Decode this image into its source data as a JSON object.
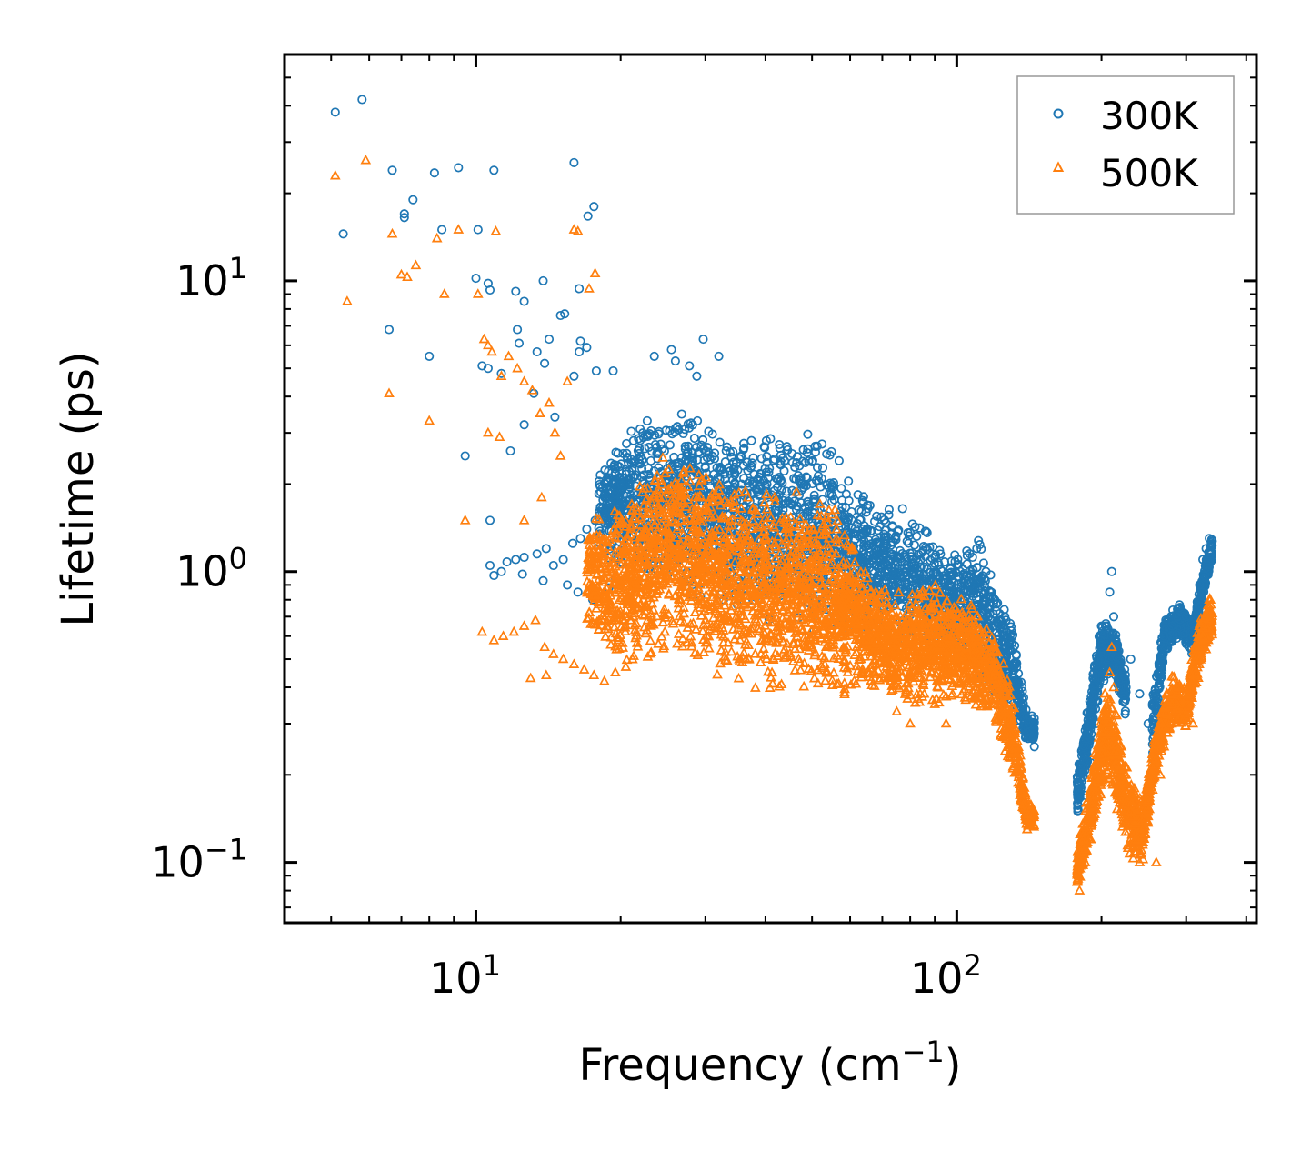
{
  "chart_data": {
    "type": "scatter",
    "title": "",
    "xlabel": "Frequency (cm",
    "xlabel_sup": "−1",
    "xlabel_end": ")",
    "ylabel": "Lifetime (ps)",
    "xscale": "log",
    "yscale": "log",
    "xlim": [
      4.0,
      420
    ],
    "ylim": [
      0.062,
      60
    ],
    "x_ticks": [
      {
        "value": 10,
        "base": "10",
        "exp": "1"
      },
      {
        "value": 100,
        "base": "10",
        "exp": "2"
      }
    ],
    "y_ticks": [
      {
        "value": 0.1,
        "base": "10",
        "exp": "−1"
      },
      {
        "value": 1,
        "base": "10",
        "exp": "0"
      },
      {
        "value": 10,
        "base": "10",
        "exp": "1"
      }
    ],
    "grid": false,
    "legend_position": "top-right",
    "colors": {
      "s300": "#1f77b4",
      "s500": "#ff7f0e"
    },
    "series": [
      {
        "name": "300K",
        "marker": "circle",
        "points": [
          [
            5.1,
            38
          ],
          [
            5.8,
            42
          ],
          [
            5.3,
            14.5
          ],
          [
            6.7,
            24
          ],
          [
            7.1,
            17
          ],
          [
            7.1,
            16.5
          ],
          [
            7.4,
            19
          ],
          [
            8.2,
            23.5
          ],
          [
            8.5,
            15
          ],
          [
            9.2,
            24.5
          ],
          [
            10.1,
            15
          ],
          [
            10.9,
            24
          ],
          [
            10.0,
            10.2
          ],
          [
            10.6,
            9.8
          ],
          [
            10.7,
            9.3
          ],
          [
            12.1,
            9.2
          ],
          [
            12.6,
            8.5
          ],
          [
            13.8,
            10
          ],
          [
            15.0,
            7.6
          ],
          [
            15.3,
            7.7
          ],
          [
            6.6,
            6.8
          ],
          [
            8.0,
            5.5
          ],
          [
            10.3,
            5.1
          ],
          [
            10.6,
            5
          ],
          [
            11.3,
            4.8
          ],
          [
            12.2,
            6.8
          ],
          [
            12.3,
            6.1
          ],
          [
            13.4,
            5.7
          ],
          [
            13.9,
            5.2
          ],
          [
            14.2,
            6.3
          ],
          [
            16.4,
            5.7
          ],
          [
            16.5,
            6.2
          ],
          [
            16.0,
            4.7
          ],
          [
            17.0,
            5.9
          ],
          [
            17.8,
            4.9
          ],
          [
            19.3,
            4.9
          ],
          [
            16.0,
            25.5
          ],
          [
            17.1,
            16.7
          ],
          [
            17.6,
            18
          ],
          [
            16.4,
            9.4
          ],
          [
            9.5,
            2.5
          ],
          [
            10.7,
            1.5
          ],
          [
            11.8,
            2.6
          ],
          [
            12.6,
            3.2
          ],
          [
            13.2,
            4.1
          ],
          [
            14.6,
            3.4
          ],
          [
            23.5,
            5.5
          ],
          [
            25.5,
            5.8
          ],
          [
            26.0,
            5.3
          ],
          [
            27.8,
            5.1
          ],
          [
            29.7,
            6.3
          ],
          [
            28.8,
            4.7
          ],
          [
            32.0,
            5.5
          ],
          [
            10.7,
            1.05
          ],
          [
            10.9,
            0.97
          ],
          [
            11.3,
            1.0
          ],
          [
            11.6,
            1.08
          ],
          [
            12.1,
            1.1
          ],
          [
            12.6,
            1.12
          ],
          [
            13.4,
            1.15
          ],
          [
            14.0,
            1.2
          ],
          [
            14.5,
            1.05
          ],
          [
            15.2,
            1.1
          ],
          [
            15.9,
            1.25
          ],
          [
            16.5,
            1.3
          ],
          [
            17.0,
            1.4
          ],
          [
            17.7,
            1.5
          ],
          [
            18.3,
            1.6
          ],
          [
            12.5,
            0.98
          ],
          [
            13.8,
            0.93
          ],
          [
            15.5,
            0.9
          ],
          [
            16.3,
            0.85
          ],
          [
            17.5,
            0.8
          ],
          [
            18.9,
            0.88
          ],
          [
            19.5,
            0.95
          ],
          [
            185,
            0.17
          ],
          [
            190,
            0.22
          ],
          [
            195,
            0.3
          ],
          [
            200,
            0.5
          ],
          [
            205,
            0.65
          ],
          [
            208,
            0.85
          ],
          [
            210,
            1.0
          ],
          [
            212,
            0.7
          ],
          [
            215,
            0.55
          ],
          [
            220,
            0.45
          ],
          [
            225,
            0.4
          ],
          [
            230,
            0.5
          ],
          [
            240,
            0.38
          ],
          [
            250,
            0.3
          ],
          [
            260,
            0.25
          ],
          [
            265,
            0.5
          ],
          [
            270,
            0.6
          ],
          [
            280,
            0.65
          ],
          [
            290,
            0.75
          ],
          [
            300,
            0.7
          ],
          [
            310,
            0.6
          ],
          [
            320,
            0.9
          ],
          [
            325,
            1.1
          ],
          [
            330,
            1.2
          ],
          [
            335,
            1.3
          ],
          [
            140,
            0.28
          ],
          [
            145,
            0.25
          ],
          [
            130,
            0.4
          ],
          [
            125,
            0.6
          ],
          [
            120,
            0.8
          ],
          [
            115,
            1.0
          ],
          [
            110,
            1.2
          ]
        ]
      },
      {
        "name": "500K",
        "marker": "triangle",
        "points": [
          [
            5.1,
            23
          ],
          [
            5.4,
            8.5
          ],
          [
            5.9,
            26
          ],
          [
            6.7,
            14.5
          ],
          [
            7.0,
            10.5
          ],
          [
            7.2,
            10.3
          ],
          [
            7.5,
            11.3
          ],
          [
            6.6,
            4.1
          ],
          [
            8.0,
            3.3
          ],
          [
            8.3,
            14
          ],
          [
            8.6,
            9
          ],
          [
            9.2,
            15
          ],
          [
            9.5,
            1.5
          ],
          [
            10.1,
            9
          ],
          [
            10.4,
            6.3
          ],
          [
            10.6,
            6
          ],
          [
            10.8,
            5.7
          ],
          [
            11.0,
            14.8
          ],
          [
            11.3,
            4.7
          ],
          [
            11.7,
            5.5
          ],
          [
            12.2,
            5
          ],
          [
            12.6,
            4.5
          ],
          [
            13.1,
            4.2
          ],
          [
            13.6,
            3.5
          ],
          [
            14.2,
            3.8
          ],
          [
            14.6,
            3
          ],
          [
            15.0,
            2.5
          ],
          [
            15.5,
            4.5
          ],
          [
            16.0,
            15
          ],
          [
            16.3,
            14.8
          ],
          [
            17.2,
            9.4
          ],
          [
            17.7,
            10.6
          ],
          [
            12.6,
            1.5
          ],
          [
            13.7,
            1.8
          ],
          [
            10.6,
            3.0
          ],
          [
            11.2,
            2.9
          ],
          [
            10.3,
            0.62
          ],
          [
            10.9,
            0.58
          ],
          [
            11.4,
            0.6
          ],
          [
            12.0,
            0.62
          ],
          [
            12.6,
            0.65
          ],
          [
            13.3,
            0.68
          ],
          [
            13.9,
            0.55
          ],
          [
            14.5,
            0.52
          ],
          [
            15.2,
            0.5
          ],
          [
            16.0,
            0.48
          ],
          [
            16.8,
            0.46
          ],
          [
            17.6,
            0.44
          ],
          [
            18.5,
            0.42
          ],
          [
            19.5,
            0.45
          ],
          [
            20.5,
            0.47
          ],
          [
            13.0,
            0.43
          ],
          [
            14.0,
            0.44
          ],
          [
            180,
            0.08
          ],
          [
            185,
            0.1
          ],
          [
            190,
            0.12
          ],
          [
            195,
            0.17
          ],
          [
            200,
            0.25
          ],
          [
            205,
            0.32
          ],
          [
            208,
            0.45
          ],
          [
            210,
            0.55
          ],
          [
            212,
            0.4
          ],
          [
            215,
            0.32
          ],
          [
            220,
            0.25
          ],
          [
            225,
            0.2
          ],
          [
            230,
            0.15
          ],
          [
            235,
            0.12
          ],
          [
            240,
            0.1
          ],
          [
            250,
            0.15
          ],
          [
            260,
            0.1
          ],
          [
            265,
            0.2
          ],
          [
            270,
            0.25
          ],
          [
            280,
            0.3
          ],
          [
            290,
            0.4
          ],
          [
            300,
            0.35
          ],
          [
            310,
            0.3
          ],
          [
            320,
            0.5
          ],
          [
            325,
            0.6
          ],
          [
            330,
            0.7
          ],
          [
            335,
            0.8
          ],
          [
            140,
            0.13
          ],
          [
            145,
            0.15
          ],
          [
            135,
            0.2
          ],
          [
            130,
            0.3
          ],
          [
            125,
            0.4
          ],
          [
            120,
            0.5
          ],
          [
            115,
            0.6
          ],
          [
            110,
            0.7
          ],
          [
            105,
            0.55
          ],
          [
            100,
            0.5
          ],
          [
            95,
            0.3
          ],
          [
            90,
            0.35
          ],
          [
            80,
            0.3
          ],
          [
            75,
            0.33
          ]
        ]
      }
    ],
    "dense_clusters": [
      {
        "series": "300K",
        "seed": 11,
        "count": 2600,
        "x_range": [
          18,
          145
        ],
        "envelope": [
          [
            18,
            1.2,
            2.3
          ],
          [
            22,
            0.85,
            3.5
          ],
          [
            28,
            0.8,
            3.8
          ],
          [
            35,
            0.7,
            3.2
          ],
          [
            45,
            0.65,
            3.3
          ],
          [
            55,
            0.6,
            2.8
          ],
          [
            65,
            0.6,
            1.8
          ],
          [
            80,
            0.55,
            1.7
          ],
          [
            95,
            0.5,
            1.15
          ],
          [
            110,
            0.45,
            1.35
          ],
          [
            120,
            0.35,
            1.0
          ],
          [
            130,
            0.3,
            0.7
          ],
          [
            140,
            0.26,
            0.32
          ]
        ]
      },
      {
        "series": "300K",
        "seed": 12,
        "count": 500,
        "x_range": [
          178,
          225
        ],
        "envelope": [
          [
            178,
            0.14,
            0.2
          ],
          [
            190,
            0.25,
            0.4
          ],
          [
            200,
            0.4,
            0.7
          ],
          [
            212,
            0.45,
            0.65
          ],
          [
            225,
            0.3,
            0.45
          ]
        ]
      },
      {
        "series": "300K",
        "seed": 13,
        "count": 500,
        "x_range": [
          255,
          340
        ],
        "envelope": [
          [
            255,
            0.2,
            0.4
          ],
          [
            270,
            0.5,
            0.7
          ],
          [
            290,
            0.6,
            0.78
          ],
          [
            310,
            0.5,
            0.7
          ],
          [
            325,
            0.8,
            1.0
          ],
          [
            340,
            1.1,
            1.35
          ]
        ]
      },
      {
        "series": "500K",
        "seed": 21,
        "count": 3200,
        "x_range": [
          17,
          145
        ],
        "envelope": [
          [
            17,
            0.6,
            1.5
          ],
          [
            20,
            0.48,
            1.7
          ],
          [
            25,
            0.5,
            2.7
          ],
          [
            30,
            0.45,
            2.3
          ],
          [
            38,
            0.38,
            2.0
          ],
          [
            45,
            0.38,
            1.9
          ],
          [
            55,
            0.35,
            1.8
          ],
          [
            65,
            0.38,
            1.0
          ],
          [
            75,
            0.35,
            0.85
          ],
          [
            90,
            0.33,
            0.95
          ],
          [
            100,
            0.35,
            0.85
          ],
          [
            110,
            0.33,
            0.75
          ],
          [
            120,
            0.3,
            0.65
          ],
          [
            130,
            0.2,
            0.4
          ],
          [
            140,
            0.13,
            0.16
          ]
        ]
      },
      {
        "series": "500K",
        "seed": 22,
        "count": 700,
        "x_range": [
          178,
          245
        ],
        "envelope": [
          [
            178,
            0.08,
            0.11
          ],
          [
            190,
            0.12,
            0.2
          ],
          [
            205,
            0.2,
            0.42
          ],
          [
            215,
            0.15,
            0.32
          ],
          [
            230,
            0.1,
            0.2
          ],
          [
            245,
            0.1,
            0.16
          ]
        ]
      },
      {
        "series": "500K",
        "seed": 23,
        "count": 600,
        "x_range": [
          245,
          340
        ],
        "envelope": [
          [
            245,
            0.11,
            0.17
          ],
          [
            260,
            0.2,
            0.3
          ],
          [
            280,
            0.3,
            0.45
          ],
          [
            300,
            0.28,
            0.4
          ],
          [
            320,
            0.45,
            0.7
          ],
          [
            340,
            0.6,
            0.85
          ]
        ]
      }
    ]
  }
}
